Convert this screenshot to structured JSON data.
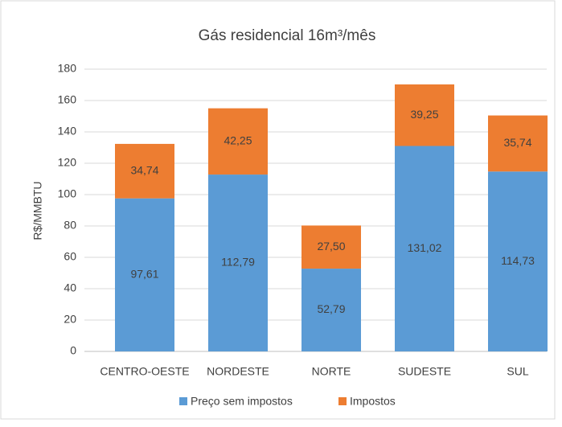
{
  "chart_data": {
    "type": "stacked-bar",
    "title": "Gás residencial 16m³/mês",
    "y_label": "R$/MMBTU",
    "categories": [
      "CENTRO-OESTE",
      "NORDESTE",
      "NORTE",
      "SUDESTE",
      "SUL"
    ],
    "series": [
      {
        "name": "Preço sem impostos",
        "color": "#5b9bd5",
        "values": [
          97.61,
          112.79,
          52.79,
          131.02,
          114.73
        ],
        "value_labels": [
          "97,61",
          "112,79",
          "52,79",
          "131,02",
          "114,73"
        ]
      },
      {
        "name": "Impostos",
        "color": "#ed7d31",
        "values": [
          34.74,
          42.25,
          27.5,
          39.25,
          35.74
        ],
        "value_labels": [
          "34,74",
          "42,25",
          "27,50",
          "39,25",
          "35,74"
        ]
      }
    ],
    "ylim": [
      0,
      180
    ],
    "yticks": [
      0,
      20,
      40,
      60,
      80,
      100,
      120,
      140,
      160,
      180
    ],
    "grid": true,
    "legend": "bottom"
  }
}
